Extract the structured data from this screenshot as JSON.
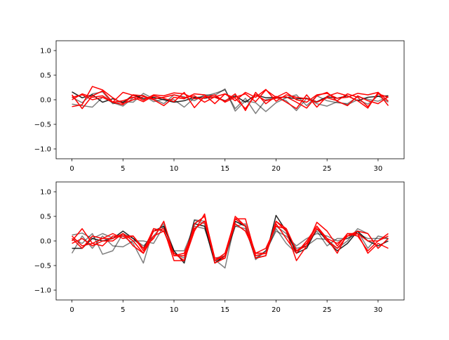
{
  "chart_data": [
    {
      "type": "line",
      "xlim": [
        -1.55,
        32.55
      ],
      "ylim": [
        -1.2,
        1.2
      ],
      "xticks": [
        0,
        5,
        10,
        15,
        20,
        25,
        30
      ],
      "yticks": [
        -1.0,
        -0.5,
        0.0,
        0.5,
        1.0
      ],
      "ytick_labels": [
        "−1.0",
        "−0.5",
        "0.0",
        "0.5",
        "1.0"
      ],
      "series": [
        {
          "color": "#000000",
          "alpha": 0.85,
          "values": [
            0.16,
            0.04,
            0.1,
            -0.05,
            0.02,
            -0.06,
            0.1,
            0.02,
            0.05,
            0.0,
            -0.05,
            -0.02,
            0.05,
            0.03,
            0.06,
            -0.02,
            0.08,
            -0.05,
            0.1,
            0.04,
            0.05,
            0.05,
            0.02,
            0.03,
            -0.04,
            0.06,
            0.03,
            0.08,
            -0.02,
            0.05,
            0.07,
            0.08
          ]
        },
        {
          "color": "#000000",
          "alpha": 0.5,
          "values": [
            -0.09,
            -0.12,
            -0.15,
            0.05,
            -0.06,
            -0.13,
            0.04,
            0.09,
            -0.04,
            0.01,
            0.0,
            -0.15,
            0.04,
            0.07,
            0.13,
            0.2,
            -0.18,
            0.03,
            -0.28,
            0.0,
            0.04,
            -0.02,
            -0.22,
            0.03,
            -0.08,
            -0.13,
            -0.04,
            -0.1,
            0.0,
            -0.09,
            0.08,
            -0.05
          ]
        },
        {
          "color": "#000000",
          "alpha": 0.5,
          "values": [
            0.05,
            -0.06,
            0.12,
            0.16,
            -0.08,
            -0.04,
            -0.05,
            0.13,
            0.02,
            -0.08,
            0.1,
            0.06,
            -0.02,
            0.1,
            0.09,
            0.22,
            -0.23,
            -0.02,
            -0.06,
            -0.24,
            -0.06,
            0.04,
            0.1,
            -0.12,
            0.08,
            -0.02,
            -0.06,
            -0.08,
            0.06,
            0.01,
            -0.03,
            0.06
          ]
        },
        {
          "color": "#ff0000",
          "alpha": 1.0,
          "values": [
            0.1,
            -0.18,
            0.08,
            0.18,
            -0.05,
            -0.02,
            0.05,
            -0.04,
            0.08,
            0.03,
            -0.04,
            0.15,
            -0.16,
            0.07,
            0.05,
            -0.03,
            0.12,
            -0.22,
            0.15,
            -0.08,
            0.07,
            -0.05,
            -0.18,
            0.1,
            -0.15,
            0.07,
            0.14,
            0.08,
            -0.02,
            -0.17,
            0.15,
            -0.12
          ]
        },
        {
          "color": "#ff0000",
          "alpha": 1.0,
          "values": [
            0.05,
            0.1,
            0.0,
            0.05,
            -0.05,
            0.15,
            0.09,
            -0.01,
            0.1,
            0.08,
            0.14,
            0.12,
            0.02,
            0.04,
            0.1,
            -0.05,
            0.05,
            0.12,
            -0.04,
            0.2,
            0.05,
            0.15,
            0.0,
            -0.05,
            0.1,
            0.13,
            0.03,
            0.05,
            0.13,
            0.1,
            0.15,
            -0.03
          ]
        },
        {
          "color": "#ff0000",
          "alpha": 1.0,
          "values": [
            -0.14,
            -0.1,
            0.27,
            0.2,
            0.04,
            -0.08,
            0.0,
            0.06,
            0.02,
            0.05,
            0.1,
            0.04,
            0.08,
            -0.05,
            0.06,
            0.12,
            0.03,
            -0.18,
            0.1,
            -0.02,
            0.03,
            0.06,
            -0.05,
            -0.17,
            0.08,
            0.15,
            -0.03,
            -0.12,
            0.08,
            -0.02,
            -0.08,
            0.06
          ]
        },
        {
          "color": "#ff0000",
          "alpha": 1.0,
          "values": [
            0.0,
            0.12,
            0.05,
            0.08,
            -0.05,
            -0.1,
            0.1,
            0.08,
            0.0,
            -0.12,
            0.05,
            0.02,
            0.12,
            0.1,
            -0.08,
            0.12,
            -0.02,
            0.15,
            0.05,
            0.21,
            -0.03,
            0.1,
            0.05,
            0.02,
            -0.05,
            0.04,
            -0.02,
            0.12,
            0.05,
            -0.14,
            0.12,
            0.05
          ]
        }
      ]
    },
    {
      "type": "line",
      "xlim": [
        -1.55,
        32.55
      ],
      "ylim": [
        -1.2,
        1.2
      ],
      "xticks": [
        0,
        5,
        10,
        15,
        20,
        25,
        30
      ],
      "yticks": [
        -1.0,
        -0.5,
        0.0,
        0.5,
        1.0
      ],
      "ytick_labels": [
        "−1.0",
        "−0.5",
        "0.0",
        "0.5",
        "1.0"
      ],
      "series": [
        {
          "color": "#000000",
          "alpha": 0.85,
          "values": [
            -0.15,
            -0.15,
            0.05,
            0.0,
            0.05,
            0.2,
            0.05,
            -0.15,
            0.2,
            0.3,
            -0.2,
            -0.45,
            0.35,
            0.3,
            -0.45,
            -0.3,
            0.4,
            0.3,
            -0.35,
            -0.3,
            0.52,
            0.2,
            -0.25,
            -0.15,
            0.25,
            0.0,
            -0.2,
            -0.05,
            0.2,
            0.0,
            -0.1,
            0.0
          ]
        },
        {
          "color": "#000000",
          "alpha": 0.5,
          "values": [
            0.12,
            0.16,
            0.05,
            0.15,
            0.06,
            0.1,
            -0.05,
            -0.45,
            0.25,
            0.2,
            -0.25,
            -0.4,
            0.43,
            0.4,
            -0.38,
            -0.55,
            0.4,
            0.3,
            -0.38,
            -0.2,
            0.3,
            0.15,
            -0.15,
            -0.1,
            0.05,
            0.03,
            -0.15,
            0.0,
            0.25,
            0.15,
            -0.15,
            0.05
          ]
        },
        {
          "color": "#000000",
          "alpha": 0.5,
          "values": [
            -0.25,
            0.1,
            -0.15,
            0.1,
            -0.1,
            -0.12,
            0.0,
            0.0,
            -0.05,
            0.3,
            -0.25,
            -0.35,
            0.42,
            0.35,
            -0.4,
            -0.35,
            0.3,
            0.35,
            -0.25,
            -0.25,
            0.25,
            -0.05,
            -0.25,
            -0.05,
            0.2,
            -0.1,
            0.05,
            0.05,
            0.15,
            0.05,
            0.05,
            0.05
          ]
        },
        {
          "color": "#000000",
          "alpha": 0.5,
          "values": [
            0.05,
            -0.05,
            0.15,
            -0.27,
            -0.2,
            0.15,
            0.05,
            -0.1,
            0.1,
            0.35,
            -0.2,
            -0.2,
            0.3,
            0.25,
            -0.35,
            -0.3,
            0.3,
            0.25,
            -0.35,
            -0.2,
            0.2,
            0.1,
            -0.1,
            0.05,
            0.15,
            0.1,
            0.0,
            0.05,
            0.2,
            -0.15,
            0.1,
            0.05
          ]
        },
        {
          "color": "#ff0000",
          "alpha": 1.0,
          "values": [
            0.0,
            0.25,
            -0.05,
            -0.1,
            0.1,
            0.1,
            0.1,
            -0.2,
            0.25,
            0.2,
            -0.25,
            -0.4,
            0.2,
            0.55,
            -0.45,
            -0.35,
            0.5,
            0.3,
            -0.25,
            -0.25,
            0.4,
            0.2,
            -0.4,
            -0.1,
            0.38,
            0.2,
            -0.1,
            0.15,
            0.1,
            -0.2,
            0.0,
            0.1
          ]
        },
        {
          "color": "#ff0000",
          "alpha": 1.0,
          "values": [
            0.05,
            -0.15,
            0.1,
            0.05,
            0.15,
            0.05,
            0.1,
            -0.15,
            0.05,
            0.4,
            -0.3,
            -0.3,
            0.25,
            0.4,
            -0.4,
            -0.3,
            0.35,
            0.2,
            -0.25,
            -0.15,
            0.3,
            0.25,
            -0.2,
            -0.05,
            0.3,
            0.0,
            -0.15,
            0.1,
            0.2,
            0.15,
            -0.15,
            0.05
          ]
        },
        {
          "color": "#ff0000",
          "alpha": 1.0,
          "values": [
            -0.05,
            0.05,
            -0.1,
            0.0,
            0.0,
            0.15,
            -0.1,
            -0.25,
            0.2,
            0.25,
            -0.4,
            -0.4,
            0.35,
            0.5,
            -0.35,
            -0.35,
            0.45,
            0.45,
            -0.3,
            -0.25,
            0.35,
            0.05,
            -0.25,
            0.0,
            0.3,
            0.05,
            -0.25,
            0.15,
            0.15,
            -0.25,
            -0.05,
            -0.15
          ]
        },
        {
          "color": "#ff0000",
          "alpha": 1.0,
          "values": [
            0.1,
            -0.1,
            -0.05,
            0.05,
            0.05,
            0.15,
            0.0,
            -0.25,
            0.1,
            0.2,
            -0.3,
            -0.25,
            0.25,
            0.4,
            -0.4,
            -0.25,
            0.45,
            0.3,
            -0.35,
            -0.3,
            0.4,
            0.25,
            -0.2,
            -0.1,
            0.25,
            0.05,
            -0.05,
            0.1,
            0.15,
            0.0,
            0.0,
            0.15
          ]
        }
      ]
    }
  ]
}
